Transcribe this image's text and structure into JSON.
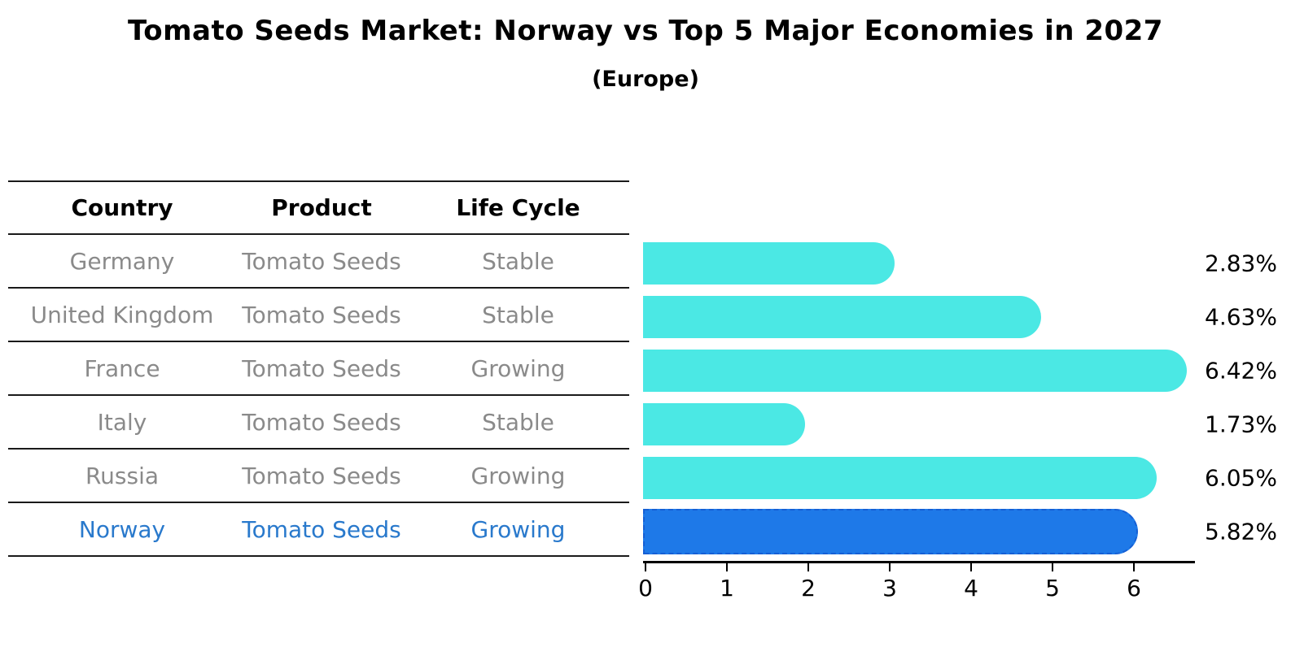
{
  "chart_data": {
    "type": "bar",
    "orientation": "horizontal",
    "title": "Tomato Seeds Market: Norway vs Top 5 Major Economies in 2027",
    "subtitle": "(Europe)",
    "categories": [
      "Germany",
      "United Kingdom",
      "France",
      "Italy",
      "Russia",
      "Norway"
    ],
    "values": [
      2.83,
      4.63,
      6.42,
      1.73,
      6.05,
      5.82
    ],
    "value_labels": [
      "2.83%",
      "4.63%",
      "6.42%",
      "1.73%",
      "6.05%",
      "5.82%"
    ],
    "highlight_category": "Norway",
    "x_ticks": [
      "0",
      "1",
      "2",
      "3",
      "4",
      "5",
      "6"
    ],
    "xlim": [
      0,
      6.77
    ],
    "grid": false,
    "legend": "none",
    "xlabel": "",
    "ylabel": ""
  },
  "table": {
    "headers": [
      "Country",
      "Product",
      "Life Cycle"
    ],
    "rows": [
      {
        "country": "Germany",
        "product": "Tomato Seeds",
        "life_cycle": "Stable",
        "highlighted": false
      },
      {
        "country": "United Kingdom",
        "product": "Tomato Seeds",
        "life_cycle": "Stable",
        "highlighted": false
      },
      {
        "country": "France",
        "product": "Tomato Seeds",
        "life_cycle": "Growing",
        "highlighted": false
      },
      {
        "country": "Italy",
        "product": "Tomato Seeds",
        "life_cycle": "Stable",
        "highlighted": false
      },
      {
        "country": "Russia",
        "product": "Tomato Seeds",
        "life_cycle": "Growing",
        "highlighted": false
      },
      {
        "country": "Norway",
        "product": "Tomato Seeds",
        "life_cycle": "Growing",
        "highlighted": true
      }
    ]
  },
  "colors": {
    "bar": "#4BE8E4",
    "highlight_bar": "#1E79E8",
    "highlight_border": "#155FD4",
    "highlight_text": "#2979CC",
    "table_text": "#8A8A8A",
    "axis": "#000000",
    "background": "#FFFFFF"
  }
}
